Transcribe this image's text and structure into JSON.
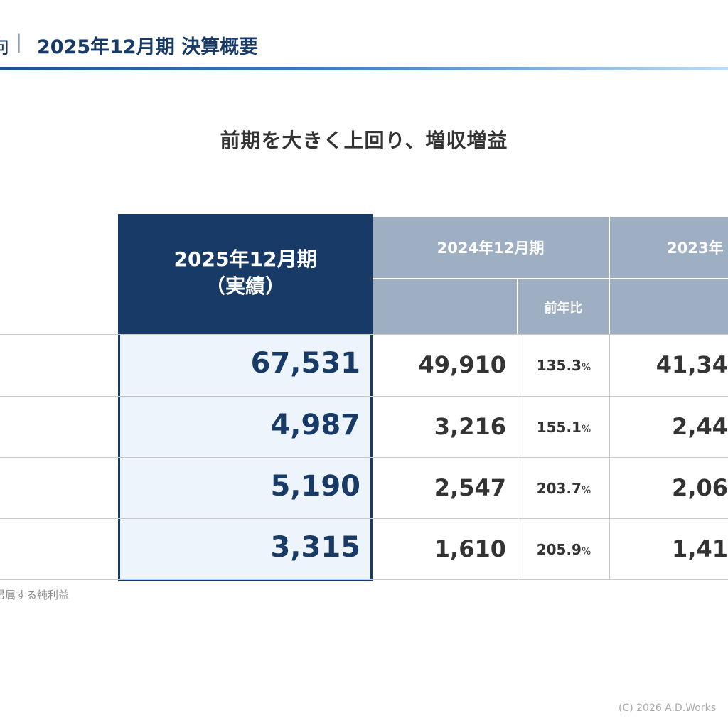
{
  "header": {
    "section": "向",
    "separator": "|",
    "title": "2025年12月期 決算概要"
  },
  "subtitle": "前期を大きく上回り、増収増益",
  "table": {
    "current_header": [
      "2025年12月期",
      "（実績）"
    ],
    "prev_header": "2024年12月期",
    "prev_ratio_header": "前年比",
    "older_header": "2023年",
    "rows": [
      {
        "current": "67,531",
        "prev": "49,910",
        "ratio": {
          "num": "135.3",
          "unit": "%"
        },
        "older": "41,34"
      },
      {
        "current": "4,987",
        "prev": "3,216",
        "ratio": {
          "num": "155.1",
          "unit": "%"
        },
        "older": "2,44"
      },
      {
        "current": "5,190",
        "prev": "2,547",
        "ratio": {
          "num": "203.7",
          "unit": "%"
        },
        "older": "2,06"
      },
      {
        "current": "3,315",
        "prev": "1,610",
        "ratio": {
          "num": "205.9",
          "unit": "%"
        },
        "older": "1,41"
      }
    ]
  },
  "footnote": "帰属する純利益",
  "copyright": "(C) 2026  A.D.Works"
}
